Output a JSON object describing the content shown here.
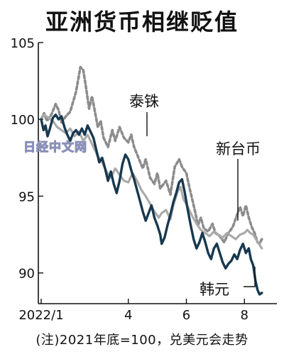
{
  "title": "亚洲货币相继贬值",
  "note": "(注)2021年底=100，兑美元会走势",
  "watermark": "日经中文网",
  "chart_data": {
    "type": "line",
    "x_ticks": [
      {
        "x": 0,
        "label": "2022/1"
      },
      {
        "x": 3,
        "label": "4"
      },
      {
        "x": 5,
        "label": "6"
      },
      {
        "x": 7,
        "label": "8"
      }
    ],
    "xlim": [
      0,
      7.8
    ],
    "y_ticks": [
      90,
      95,
      100,
      105
    ],
    "ylim": [
      88,
      105
    ],
    "grid": false,
    "series": [
      {
        "name": "泰铢",
        "color": "#8c8c8c",
        "style": "dotted",
        "points": [
          [
            0,
            100.0
          ],
          [
            0.1,
            100.4
          ],
          [
            0.2,
            99.9
          ],
          [
            0.35,
            100.3
          ],
          [
            0.5,
            101.0
          ],
          [
            0.6,
            100.6
          ],
          [
            0.7,
            99.8
          ],
          [
            0.85,
            100.2
          ],
          [
            1.0,
            100.5
          ],
          [
            1.2,
            101.8
          ],
          [
            1.35,
            103.4
          ],
          [
            1.45,
            103.2
          ],
          [
            1.55,
            102.0
          ],
          [
            1.65,
            100.7
          ],
          [
            1.75,
            101.5
          ],
          [
            1.85,
            100.5
          ],
          [
            1.95,
            99.5
          ],
          [
            2.05,
            99.9
          ],
          [
            2.15,
            98.8
          ],
          [
            2.3,
            98.2
          ],
          [
            2.45,
            99.3
          ],
          [
            2.55,
            98.6
          ],
          [
            2.7,
            99.5
          ],
          [
            2.85,
            98.8
          ],
          [
            3.0,
            98.5
          ],
          [
            3.1,
            99.0
          ],
          [
            3.2,
            98.2
          ],
          [
            3.35,
            97.5
          ],
          [
            3.5,
            96.8
          ],
          [
            3.6,
            97.4
          ],
          [
            3.75,
            96.2
          ],
          [
            3.9,
            95.8
          ],
          [
            4.0,
            96.5
          ],
          [
            4.1,
            95.5
          ],
          [
            4.3,
            96.0
          ],
          [
            4.45,
            95.1
          ],
          [
            4.6,
            96.9
          ],
          [
            4.75,
            97.4
          ],
          [
            4.85,
            96.9
          ],
          [
            5.0,
            96.5
          ],
          [
            5.1,
            95.6
          ],
          [
            5.2,
            94.8
          ],
          [
            5.3,
            94.0
          ],
          [
            5.4,
            93.1
          ],
          [
            5.5,
            93.6
          ],
          [
            5.6,
            92.9
          ],
          [
            5.75,
            92.7
          ],
          [
            5.9,
            93.2
          ],
          [
            6.0,
            92.6
          ],
          [
            6.15,
            92.4
          ],
          [
            6.3,
            92.0
          ],
          [
            6.45,
            92.6
          ],
          [
            6.6,
            93.0
          ],
          [
            6.75,
            93.8
          ],
          [
            6.85,
            94.3
          ],
          [
            6.95,
            93.7
          ],
          [
            7.05,
            94.4
          ],
          [
            7.15,
            93.6
          ],
          [
            7.25,
            93.0
          ],
          [
            7.35,
            92.6
          ],
          [
            7.45,
            92.0
          ],
          [
            7.52,
            91.9
          ],
          [
            7.6,
            92.2
          ]
        ]
      },
      {
        "name": "新台币",
        "color": "#aaaaaa",
        "style": "solid",
        "points": [
          [
            0,
            100.0
          ],
          [
            0.1,
            100.3
          ],
          [
            0.25,
            100.1
          ],
          [
            0.4,
            99.9
          ],
          [
            0.55,
            99.5
          ],
          [
            0.7,
            99.3
          ],
          [
            0.85,
            99.1
          ],
          [
            1.0,
            99.4
          ],
          [
            1.15,
            98.9
          ],
          [
            1.3,
            99.2
          ],
          [
            1.45,
            98.6
          ],
          [
            1.6,
            99.0
          ],
          [
            1.75,
            98.4
          ],
          [
            1.85,
            98.0
          ],
          [
            1.95,
            97.6
          ],
          [
            2.1,
            97.2
          ],
          [
            2.25,
            96.6
          ],
          [
            2.4,
            96.2
          ],
          [
            2.55,
            96.8
          ],
          [
            2.7,
            96.4
          ],
          [
            2.85,
            96.0
          ],
          [
            3.0,
            95.9
          ],
          [
            3.15,
            96.5
          ],
          [
            3.3,
            96.0
          ],
          [
            3.45,
            95.4
          ],
          [
            3.6,
            95.0
          ],
          [
            3.75,
            94.5
          ],
          [
            3.9,
            94.0
          ],
          [
            4.05,
            93.6
          ],
          [
            4.15,
            93.9
          ],
          [
            4.3,
            94.1
          ],
          [
            4.45,
            93.5
          ],
          [
            4.55,
            94.4
          ],
          [
            4.7,
            95.3
          ],
          [
            4.8,
            95.6
          ],
          [
            4.9,
            94.8
          ],
          [
            5.05,
            94.3
          ],
          [
            5.2,
            93.7
          ],
          [
            5.35,
            93.2
          ],
          [
            5.5,
            92.8
          ],
          [
            5.65,
            92.6
          ],
          [
            5.8,
            92.4
          ],
          [
            5.95,
            92.7
          ],
          [
            6.1,
            92.5
          ],
          [
            6.25,
            92.3
          ],
          [
            6.4,
            92.6
          ],
          [
            6.55,
            92.4
          ],
          [
            6.7,
            92.2
          ],
          [
            6.85,
            92.5
          ],
          [
            7.0,
            92.6
          ],
          [
            7.1,
            92.8
          ],
          [
            7.2,
            92.6
          ],
          [
            7.3,
            92.5
          ],
          [
            7.4,
            92.2
          ],
          [
            7.5,
            91.9
          ],
          [
            7.6,
            91.6
          ]
        ]
      },
      {
        "name": "韩元",
        "color": "#17384f",
        "style": "solid",
        "points": [
          [
            0,
            100.0
          ],
          [
            0.08,
            99.3
          ],
          [
            0.15,
            99.6
          ],
          [
            0.22,
            98.9
          ],
          [
            0.3,
            99.4
          ],
          [
            0.4,
            100.1
          ],
          [
            0.5,
            100.3
          ],
          [
            0.6,
            100.0
          ],
          [
            0.7,
            100.2
          ],
          [
            0.8,
            99.5
          ],
          [
            0.9,
            99.0
          ],
          [
            1.0,
            98.6
          ],
          [
            1.1,
            99.1
          ],
          [
            1.2,
            99.3
          ],
          [
            1.3,
            99.0
          ],
          [
            1.4,
            99.4
          ],
          [
            1.5,
            99.0
          ],
          [
            1.6,
            99.6
          ],
          [
            1.7,
            99.2
          ],
          [
            1.8,
            98.8
          ],
          [
            1.9,
            98.0
          ],
          [
            2.0,
            97.2
          ],
          [
            2.1,
            97.5
          ],
          [
            2.2,
            96.8
          ],
          [
            2.3,
            96.0
          ],
          [
            2.4,
            96.6
          ],
          [
            2.5,
            95.8
          ],
          [
            2.6,
            95.2
          ],
          [
            2.7,
            96.0
          ],
          [
            2.8,
            97.1
          ],
          [
            2.9,
            97.7
          ],
          [
            3.0,
            97.4
          ],
          [
            3.1,
            96.7
          ],
          [
            3.2,
            96.1
          ],
          [
            3.3,
            95.4
          ],
          [
            3.4,
            94.7
          ],
          [
            3.5,
            94.0
          ],
          [
            3.6,
            93.4
          ],
          [
            3.7,
            93.9
          ],
          [
            3.8,
            94.4
          ],
          [
            3.9,
            93.6
          ],
          [
            4.0,
            93.1
          ],
          [
            4.1,
            92.5
          ],
          [
            4.15,
            91.9
          ],
          [
            4.25,
            92.3
          ],
          [
            4.35,
            93.1
          ],
          [
            4.45,
            93.8
          ],
          [
            4.55,
            94.6
          ],
          [
            4.65,
            95.2
          ],
          [
            4.75,
            95.9
          ],
          [
            4.85,
            96.1
          ],
          [
            4.95,
            95.2
          ],
          [
            5.05,
            94.1
          ],
          [
            5.15,
            93.1
          ],
          [
            5.25,
            92.2
          ],
          [
            5.35,
            91.6
          ],
          [
            5.45,
            92.0
          ],
          [
            5.55,
            92.6
          ],
          [
            5.65,
            92.0
          ],
          [
            5.75,
            91.3
          ],
          [
            5.85,
            90.9
          ],
          [
            5.95,
            91.6
          ],
          [
            6.05,
            91.9
          ],
          [
            6.15,
            91.3
          ],
          [
            6.25,
            90.7
          ],
          [
            6.35,
            90.3
          ],
          [
            6.45,
            90.6
          ],
          [
            6.55,
            90.8
          ],
          [
            6.65,
            91.2
          ],
          [
            6.75,
            90.9
          ],
          [
            6.85,
            91.5
          ],
          [
            6.95,
            91.9
          ],
          [
            7.05,
            91.3
          ],
          [
            7.15,
            91.6
          ],
          [
            7.22,
            90.9
          ],
          [
            7.3,
            90.5
          ],
          [
            7.38,
            89.5
          ],
          [
            7.45,
            88.9
          ],
          [
            7.52,
            88.6
          ],
          [
            7.6,
            88.7
          ]
        ]
      }
    ]
  }
}
